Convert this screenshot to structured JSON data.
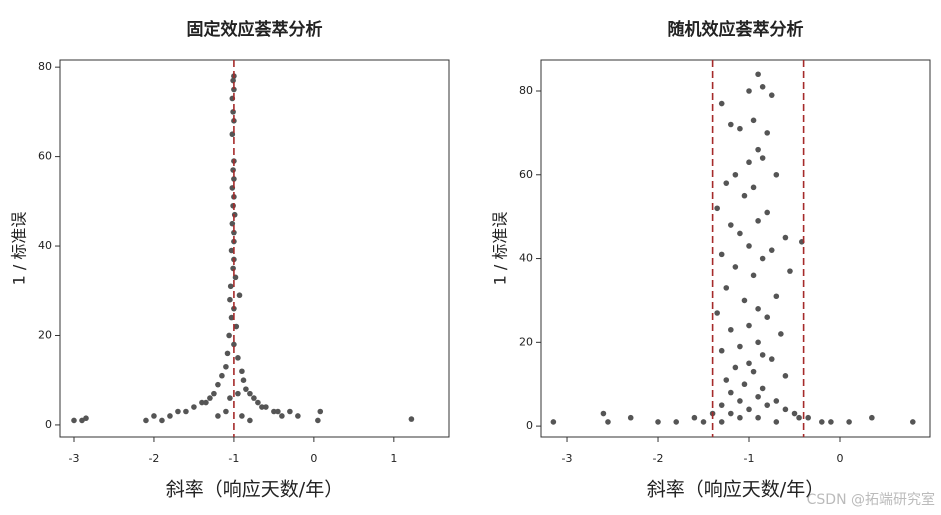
{
  "chart_data": [
    {
      "type": "scatter",
      "title": "固定效应荟萃分析",
      "xlabel": "斜率（响应天数/年）",
      "ylabel": "1 / 标准误",
      "color": "#555555",
      "vlines": [
        -1
      ],
      "vline_color": "#a52a2a",
      "xlim": [
        -3.175,
        1.69
      ],
      "ylim": [
        -2.7,
        81.6
      ],
      "xticks": [
        -3,
        -2,
        -1,
        0,
        1
      ],
      "yticks": [
        0,
        20,
        40,
        60,
        80
      ],
      "x": [
        -1.0,
        -1.01,
        -1.0,
        -1.02,
        -1.01,
        -1.0,
        -1.02,
        -1.0,
        -1.01,
        -1.0,
        -1.02,
        -1.0,
        -1.01,
        -0.99,
        -1.02,
        -1.0,
        -1.0,
        -1.03,
        -1.0,
        -1.01,
        -0.98,
        -1.04,
        -0.93,
        -1.05,
        -1.0,
        -1.03,
        -0.97,
        -1.06,
        -1.0,
        -1.08,
        -0.95,
        -1.1,
        -0.9,
        -1.15,
        -0.88,
        -1.2,
        -0.85,
        -1.25,
        -0.8,
        -1.3,
        -0.75,
        -1.35,
        -0.7,
        -1.4,
        -0.65,
        -1.5,
        -0.6,
        -1.6,
        -0.5,
        -1.7,
        -0.45,
        -1.8,
        -0.4,
        -0.3,
        -2.0,
        -1.9,
        -0.2,
        -2.1,
        0.08,
        0.05,
        -3.0,
        -2.9,
        -2.85,
        1.22,
        -1.1,
        -0.9,
        -1.2,
        -0.8,
        -1.05,
        -0.95
      ],
      "values": [
        78,
        77,
        75,
        73,
        70,
        68,
        65,
        59,
        57,
        55,
        53,
        51,
        49,
        47,
        45,
        43,
        41,
        39,
        37,
        35,
        33,
        31,
        29,
        28,
        26,
        24,
        22,
        20,
        18,
        16,
        15,
        13,
        12,
        11,
        10,
        9,
        8,
        7,
        7,
        6,
        6,
        5,
        5,
        5,
        4,
        4,
        4,
        3,
        3,
        3,
        3,
        2,
        2,
        3,
        2,
        1,
        2,
        1,
        3,
        1,
        1,
        1,
        1.5,
        1.3,
        3,
        2,
        2,
        1,
        6,
        7
      ]
    },
    {
      "type": "scatter",
      "title": "随机效应荟萃分析",
      "xlabel": "斜率（响应天数/年）",
      "ylabel": "1 / 标准误",
      "color": "#555555",
      "vlines": [
        -1.4,
        -0.4
      ],
      "vline_color": "#a52a2a",
      "xlim": [
        -3.286,
        0.989
      ],
      "ylim": [
        -2.6,
        87.4
      ],
      "xticks": [
        -3,
        -2,
        -1,
        0
      ],
      "yticks": [
        0,
        20,
        40,
        60,
        80
      ],
      "x": [
        -0.9,
        -0.85,
        -1.0,
        -0.75,
        -1.3,
        -1.2,
        -1.1,
        -0.95,
        -0.8,
        -0.9,
        -0.85,
        -1.0,
        -1.15,
        -0.7,
        -1.25,
        -0.95,
        -1.05,
        -1.35,
        -0.8,
        -0.9,
        -1.2,
        -1.1,
        -0.6,
        -0.42,
        -1.0,
        -0.75,
        -1.3,
        -0.85,
        -1.15,
        -0.55,
        -0.95,
        -1.25,
        -0.7,
        -1.05,
        -0.9,
        -1.35,
        -0.8,
        -1.0,
        -1.2,
        -0.65,
        -0.9,
        -1.1,
        -1.3,
        -0.85,
        -0.75,
        -1.0,
        -1.15,
        -0.95,
        -0.6,
        -1.25,
        -1.05,
        -0.85,
        -1.2,
        -0.9,
        -0.7,
        -1.1,
        -1.3,
        -0.8,
        -1.0,
        -0.6,
        -1.2,
        -0.5,
        -1.4,
        -0.9,
        -1.1,
        -0.45,
        -1.6,
        -1.8,
        -2.0,
        -2.3,
        -2.55,
        -2.6,
        -3.15,
        -0.2,
        -0.1,
        0.1,
        0.35,
        0.8,
        -1.5,
        -1.3,
        -0.7,
        -0.35
      ],
      "values": [
        84,
        81,
        80,
        79,
        77,
        72,
        71,
        73,
        70,
        66,
        64,
        63,
        60,
        60,
        58,
        57,
        55,
        52,
        51,
        49,
        48,
        46,
        45,
        44,
        43,
        42,
        41,
        40,
        38,
        37,
        36,
        33,
        31,
        30,
        28,
        27,
        26,
        24,
        23,
        22,
        20,
        19,
        18,
        17,
        16,
        15,
        14,
        13,
        12,
        11,
        10,
        9,
        8,
        7,
        6,
        6,
        5,
        5,
        4,
        4,
        3,
        3,
        3,
        2,
        2,
        2,
        2,
        1,
        1,
        2,
        1,
        3,
        1,
        1,
        1,
        1,
        2,
        1,
        1,
        1,
        1,
        2
      ]
    }
  ],
  "watermark": "CSDN @拓端研究室"
}
